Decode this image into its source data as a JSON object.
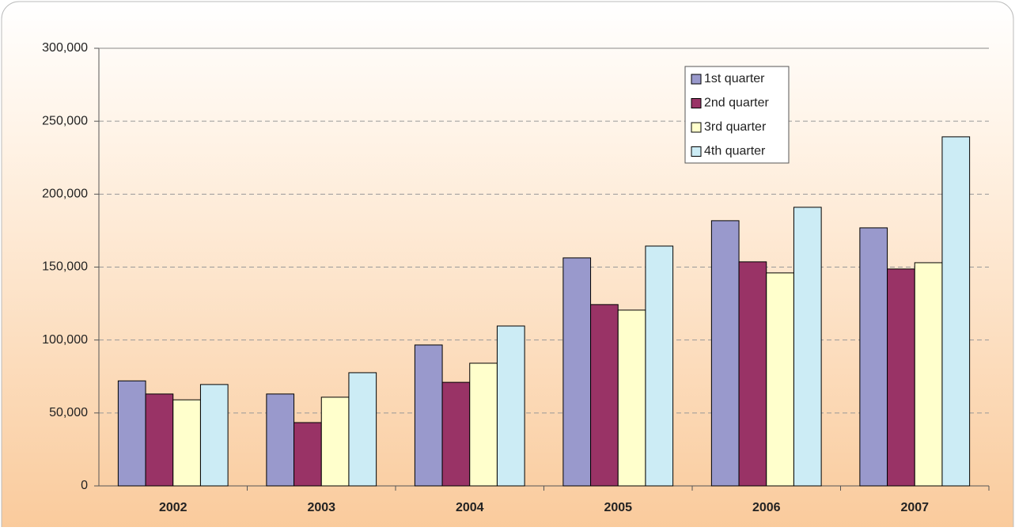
{
  "chart_data": {
    "type": "bar",
    "categories": [
      "2002",
      "2003",
      "2004",
      "2005",
      "2006",
      "2007"
    ],
    "series": [
      {
        "name": "1st quarter",
        "color": "#9999cc",
        "values": [
          72000,
          63000,
          96600,
          156300,
          181800,
          176900
        ]
      },
      {
        "name": "2nd quarter",
        "color": "#993366",
        "values": [
          63000,
          43400,
          71000,
          124300,
          153600,
          148700
        ]
      },
      {
        "name": "3rd quarter",
        "color": "#ffffcc",
        "values": [
          59000,
          60800,
          84100,
          120500,
          146000,
          153000
        ]
      },
      {
        "name": "4th quarter",
        "color": "#ccecf5",
        "values": [
          69500,
          77600,
          109600,
          164400,
          191000,
          239300
        ]
      }
    ],
    "ylim": [
      0,
      300000
    ],
    "yticks": [
      0,
      {
        "value": 50000,
        "label": "50,000"
      },
      {
        "value": 100000,
        "label": "100,000"
      },
      {
        "value": 150000,
        "label": "150,000"
      },
      {
        "value": 200000,
        "label": "200,000"
      },
      {
        "value": 250000,
        "label": "250,000"
      },
      {
        "value": 300000,
        "label": "300,000"
      }
    ],
    "grid": true,
    "legend": "upper-right"
  }
}
